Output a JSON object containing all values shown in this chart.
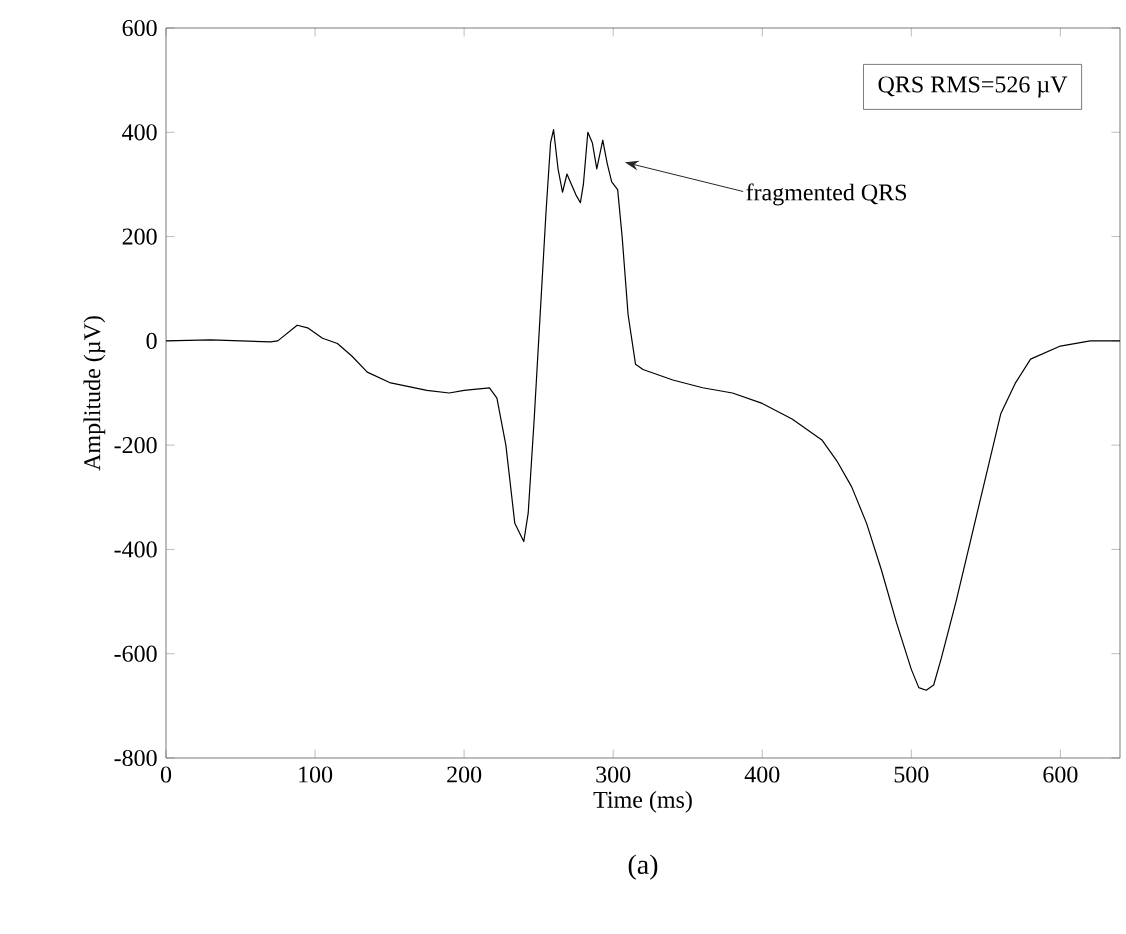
{
  "chart_data": {
    "type": "line",
    "xlabel": "Time (ms)",
    "ylabel": "Amplitude (µV)",
    "xlim": [
      0,
      640
    ],
    "ylim": [
      -800,
      600
    ],
    "xticks": [
      0,
      100,
      200,
      300,
      400,
      500,
      600
    ],
    "yticks": [
      -800,
      -600,
      -400,
      -200,
      0,
      200,
      400,
      600
    ],
    "grid": false,
    "marker": "none",
    "line_style": "solid",
    "series": [
      {
        "color": "#000000",
        "x": [
          0,
          30,
          70,
          75,
          88,
          95,
          105,
          115,
          125,
          135,
          150,
          175,
          190,
          200,
          210,
          217,
          222,
          228,
          232,
          234,
          240,
          243,
          247,
          250,
          255,
          258,
          260,
          263,
          266,
          269,
          272,
          275,
          278,
          280,
          283,
          286,
          289,
          293,
          296,
          299,
          303,
          306,
          310,
          315,
          320,
          340,
          360,
          380,
          400,
          420,
          440,
          450,
          460,
          470,
          480,
          490,
          500,
          505,
          510,
          515,
          520,
          530,
          540,
          550,
          560,
          570,
          580,
          600,
          620,
          640
        ],
        "values": [
          0,
          2,
          -2,
          0,
          30,
          25,
          5,
          -5,
          -30,
          -60,
          -80,
          -95,
          -100,
          -95,
          -92,
          -90,
          -110,
          -200,
          -300,
          -350,
          -385,
          -330,
          -150,
          0,
          250,
          380,
          405,
          330,
          285,
          320,
          300,
          280,
          265,
          300,
          400,
          380,
          330,
          385,
          340,
          305,
          290,
          200,
          50,
          -45,
          -55,
          -75,
          -90,
          -100,
          -120,
          -150,
          -190,
          -230,
          -280,
          -350,
          -440,
          -540,
          -630,
          -665,
          -670,
          -660,
          -610,
          -500,
          -380,
          -260,
          -140,
          -80,
          -35,
          -10,
          0,
          0
        ]
      }
    ],
    "annotations": [
      "QRS RMS=526 µV",
      "fragmented QRS",
      "(a)"
    ]
  }
}
